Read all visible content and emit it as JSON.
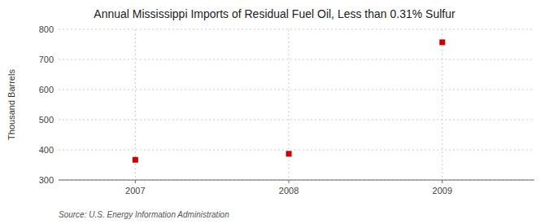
{
  "chart_data": {
    "type": "scatter",
    "title": "Annual Mississippi Imports of Residual Fuel Oil, Less than 0.31% Sulfur",
    "ylabel": "Thousand Barrels",
    "source": "Source: U.S. Energy Information Administration",
    "x": [
      2007,
      2008,
      2009
    ],
    "values": [
      367,
      387,
      757
    ],
    "xlim": [
      2006.5,
      2009.6
    ],
    "ylim": [
      300,
      800
    ],
    "xticks": [
      2007,
      2008,
      2009
    ],
    "yticks": [
      300,
      400,
      500,
      600,
      700,
      800
    ],
    "color": "#CC0000",
    "marker": "square",
    "grid": true
  }
}
